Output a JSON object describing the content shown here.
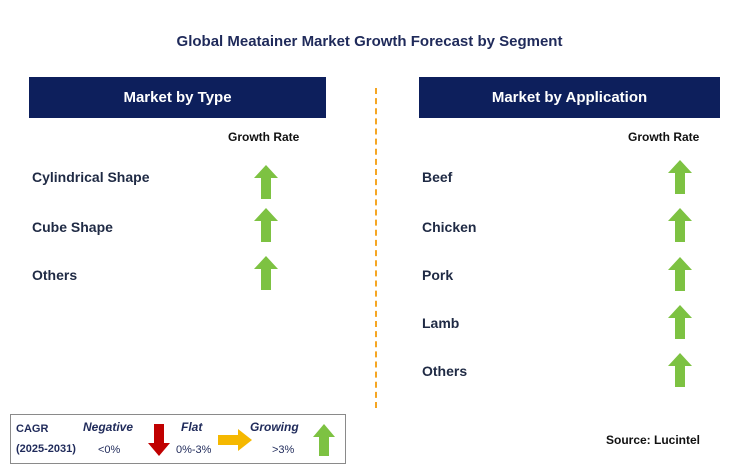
{
  "title": "Global Meatainer Market Growth Forecast by Segment",
  "left": {
    "header": "Market by Type",
    "growth_label": "Growth Rate",
    "items": [
      {
        "label": "Cylindrical Shape",
        "trend": "growing"
      },
      {
        "label": "Cube Shape",
        "trend": "growing"
      },
      {
        "label": "Others",
        "trend": "growing"
      }
    ]
  },
  "right": {
    "header": "Market by Application",
    "growth_label": "Growth Rate",
    "items": [
      {
        "label": "Beef",
        "trend": "growing"
      },
      {
        "label": "Chicken",
        "trend": "growing"
      },
      {
        "label": "Pork",
        "trend": "growing"
      },
      {
        "label": "Lamb",
        "trend": "growing"
      },
      {
        "label": "Others",
        "trend": "growing"
      }
    ]
  },
  "legend": {
    "cagr": "CAGR",
    "period": "(2025-2031)",
    "negative": {
      "label": "Negative",
      "range": "<0%",
      "icon": "arrow-down-red"
    },
    "flat": {
      "label": "Flat",
      "range": "0%-3%",
      "icon": "arrow-right-yellow"
    },
    "growing": {
      "label": "Growing",
      "range": ">3%",
      "icon": "arrow-up-green"
    }
  },
  "source": "Source: Lucintel",
  "colors": {
    "header_bg": "#0d1f5c",
    "divider": "#f5a623",
    "growing": "#7dc242",
    "negative": "#c00000",
    "flat": "#f5b800"
  }
}
